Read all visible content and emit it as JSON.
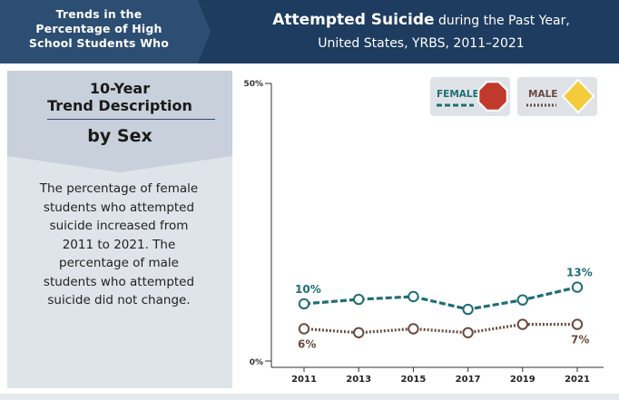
{
  "header": {
    "left_lines": [
      "Trends in the",
      "Percentage of High",
      "School Students Who"
    ],
    "title_bold": "Attempted Suicide",
    "title_rest": " during the Past Year,",
    "subtitle": "United States, YRBS, 2011–2021"
  },
  "panel": {
    "title_lines": [
      "10-Year",
      "Trend Description"
    ],
    "subtitle": "by Sex",
    "description": "The percentage of female students who attempted suicide increased from 2011 to 2021. The percentage of male students who attempted suicide did not change."
  },
  "legend": {
    "female_label": "FEMALE",
    "male_label": "MALE"
  },
  "colors": {
    "female": "#1f6e74",
    "male": "#6a4b3e",
    "female_sign": "#c0392b",
    "male_sign": "#f2cc3b",
    "axis": "#333333"
  },
  "chart_data": {
    "type": "line",
    "x": [
      "2011",
      "2013",
      "2015",
      "2017",
      "2019",
      "2021"
    ],
    "ylim": [
      0,
      50
    ],
    "yticks": [
      "0%",
      "50%"
    ],
    "series": [
      {
        "name": "FEMALE",
        "values": [
          10.3,
          11.1,
          11.6,
          9.3,
          11.0,
          13.3
        ],
        "labels": {
          "0": "10%",
          "5": "13%"
        }
      },
      {
        "name": "MALE",
        "values": [
          5.8,
          5.1,
          5.8,
          5.1,
          6.6,
          6.6
        ],
        "labels": {
          "0": "6%",
          "5": "7%"
        }
      }
    ]
  }
}
